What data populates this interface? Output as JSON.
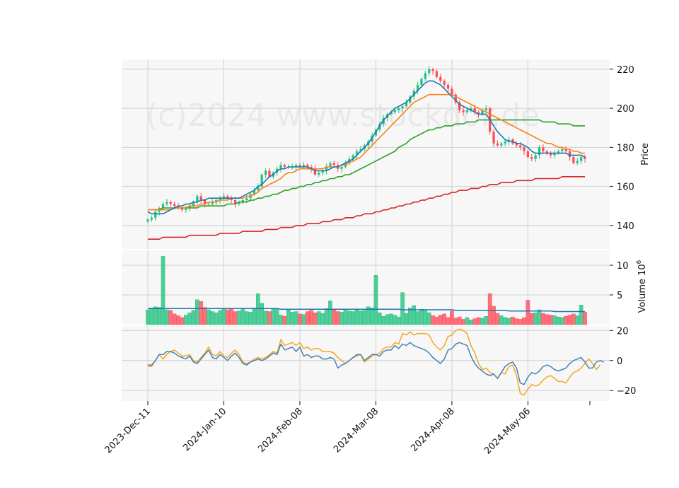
{
  "chart_data": {
    "type": "candlestick",
    "watermark": "(c)2024 www.stockdor.de",
    "x_tick_labels": [
      "2023-Dec-11",
      "2024-Jan-10",
      "2024-Feb-08",
      "2024-Mar-08",
      "2024-Apr-08",
      "2024-May-06"
    ],
    "x_tick_positions": [
      0,
      20,
      40,
      60,
      80,
      100
    ],
    "colors": {
      "up": "#26c281",
      "down": "#ff4d5a",
      "ma_fast": "#1f77b4",
      "ma_mid": "#ff7f0e",
      "ma_slow": "#2ca02c",
      "ma_long": "#d62728",
      "osc_a": "#f5a623",
      "osc_b": "#4682b4",
      "panel_bg": "#f7f7f7",
      "grid": "#d0d0d0"
    },
    "price_panel": {
      "ylabel": "Price",
      "ylim": [
        128,
        225
      ],
      "yticks": [
        140,
        160,
        180,
        200,
        220
      ],
      "close": [
        143,
        144,
        147,
        149,
        151,
        152,
        151,
        150,
        149,
        148,
        149,
        150,
        152,
        155,
        153,
        151,
        151,
        152,
        153,
        154,
        155,
        154,
        153,
        151,
        152,
        153,
        154,
        156,
        158,
        160,
        166,
        168,
        165,
        167,
        169,
        171,
        170,
        170,
        170,
        171,
        170,
        171,
        170,
        169,
        166,
        167,
        168,
        170,
        172,
        171,
        169,
        170,
        172,
        174,
        176,
        178,
        179,
        181,
        183,
        186,
        189,
        192,
        195,
        197,
        198,
        199,
        200,
        201,
        203,
        206,
        209,
        212,
        215,
        218,
        220,
        219,
        216,
        214,
        212,
        210,
        207,
        203,
        199,
        198,
        199,
        200,
        198,
        197,
        199,
        200,
        188,
        182,
        181,
        182,
        183,
        184,
        182,
        181,
        180,
        178,
        175,
        174,
        176,
        180,
        178,
        177,
        176,
        177,
        178,
        179,
        178,
        175,
        172,
        173,
        175,
        174
      ],
      "ma_fast": [
        147,
        146,
        146,
        146,
        146,
        147,
        148,
        149,
        150,
        150,
        151,
        151,
        152,
        152,
        153,
        153,
        154,
        154,
        154,
        154,
        154,
        154,
        154,
        154,
        154,
        155,
        156,
        157,
        158,
        160,
        161,
        163,
        165,
        166,
        168,
        169,
        169,
        170,
        170,
        170,
        170,
        170,
        170,
        169,
        168,
        168,
        168,
        168,
        169,
        170,
        170,
        171,
        172,
        173,
        174,
        176,
        178,
        180,
        182,
        185,
        188,
        191,
        194,
        196,
        198,
        200,
        201,
        202,
        203,
        205,
        207,
        209,
        211,
        213,
        214,
        214,
        213,
        212,
        210,
        208,
        206,
        204,
        202,
        201,
        200,
        199,
        198,
        197,
        197,
        197,
        194,
        191,
        188,
        186,
        184,
        183,
        183,
        182,
        182,
        181,
        180,
        178,
        177,
        177,
        177,
        177,
        177,
        177,
        177,
        177,
        177,
        176,
        176,
        176,
        176,
        175
      ],
      "ma_mid": [
        148,
        148,
        148,
        148,
        148,
        148,
        148,
        149,
        149,
        149,
        149,
        150,
        150,
        150,
        151,
        151,
        152,
        152,
        152,
        153,
        153,
        153,
        154,
        154,
        154,
        154,
        155,
        155,
        156,
        157,
        159,
        160,
        161,
        162,
        163,
        164,
        166,
        167,
        167,
        168,
        169,
        169,
        169,
        169,
        169,
        169,
        169,
        170,
        170,
        170,
        170,
        171,
        171,
        172,
        173,
        174,
        175,
        177,
        179,
        181,
        183,
        185,
        187,
        189,
        191,
        193,
        195,
        197,
        199,
        201,
        203,
        204,
        205,
        206,
        207,
        207,
        207,
        207,
        207,
        207,
        207,
        206,
        205,
        204,
        203,
        202,
        201,
        200,
        199,
        198,
        197,
        196,
        195,
        194,
        193,
        192,
        191,
        190,
        189,
        188,
        187,
        186,
        185,
        184,
        183,
        182,
        182,
        181,
        180,
        180,
        179,
        179,
        178,
        178,
        177,
        177
      ],
      "ma_slow": [
        148,
        148,
        148,
        148,
        149,
        149,
        149,
        149,
        149,
        149,
        149,
        149,
        149,
        149,
        150,
        150,
        150,
        150,
        150,
        150,
        150,
        151,
        151,
        151,
        152,
        152,
        152,
        153,
        153,
        154,
        154,
        155,
        155,
        156,
        156,
        157,
        158,
        158,
        159,
        159,
        160,
        160,
        161,
        161,
        162,
        162,
        163,
        163,
        164,
        164,
        165,
        165,
        166,
        166,
        167,
        168,
        169,
        170,
        171,
        172,
        173,
        174,
        175,
        176,
        177,
        178,
        180,
        181,
        182,
        184,
        185,
        186,
        187,
        188,
        189,
        189,
        190,
        190,
        191,
        191,
        191,
        192,
        192,
        192,
        193,
        193,
        193,
        194,
        194,
        194,
        194,
        194,
        194,
        194,
        194,
        194,
        194,
        194,
        194,
        194,
        194,
        194,
        194,
        194,
        193,
        193,
        193,
        193,
        192,
        192,
        192,
        192,
        191,
        191,
        191,
        191
      ],
      "ma_long": [
        133,
        133,
        133,
        133,
        134,
        134,
        134,
        134,
        134,
        134,
        134,
        135,
        135,
        135,
        135,
        135,
        135,
        135,
        135,
        136,
        136,
        136,
        136,
        136,
        136,
        137,
        137,
        137,
        137,
        137,
        137,
        138,
        138,
        138,
        138,
        139,
        139,
        139,
        139,
        140,
        140,
        140,
        141,
        141,
        141,
        141,
        142,
        142,
        142,
        143,
        143,
        143,
        144,
        144,
        144,
        145,
        145,
        146,
        146,
        146,
        147,
        147,
        148,
        148,
        149,
        149,
        150,
        150,
        151,
        151,
        152,
        152,
        153,
        153,
        154,
        154,
        155,
        155,
        156,
        156,
        157,
        157,
        158,
        158,
        158,
        159,
        159,
        159,
        160,
        160,
        161,
        161,
        161,
        162,
        162,
        162,
        162,
        163,
        163,
        163,
        163,
        163,
        164,
        164,
        164,
        164,
        164,
        164,
        164,
        165,
        165,
        165,
        165,
        165,
        165,
        165
      ]
    },
    "volume_panel": {
      "ylabel": "Volume  10",
      "ylabel_exponent": "6",
      "ylim": [
        0,
        12.5
      ],
      "yticks": [
        5,
        10
      ],
      "values": [
        2.5,
        2.8,
        3.0,
        2.9,
        11.5,
        2.5,
        2.4,
        1.8,
        1.5,
        1.2,
        1.6,
        2.0,
        2.4,
        4.2,
        3.9,
        2.9,
        2.5,
        2.2,
        2.0,
        2.4,
        2.7,
        2.5,
        2.6,
        2.2,
        2.3,
        2.7,
        2.2,
        2.1,
        2.8,
        5.2,
        3.6,
        2.3,
        2.2,
        2.6,
        2.7,
        1.6,
        1.4,
        2.5,
        2.1,
        2.2,
        1.8,
        1.7,
        2.2,
        2.4,
        2.0,
        2.2,
        1.9,
        2.7,
        4.0,
        2.5,
        2.2,
        2.1,
        2.6,
        2.3,
        2.2,
        2.5,
        2.3,
        2.4,
        3.0,
        2.8,
        8.3,
        2.0,
        1.4,
        1.7,
        1.8,
        1.6,
        1.3,
        5.4,
        1.9,
        2.8,
        3.2,
        2.2,
        2.6,
        2.5,
        2.0,
        1.5,
        1.3,
        1.6,
        1.8,
        1.2,
        2.3,
        1.1,
        1.3,
        0.9,
        1.2,
        0.8,
        1.0,
        1.2,
        1.1,
        1.4,
        5.2,
        3.1,
        1.9,
        1.5,
        1.2,
        1.1,
        1.3,
        1.0,
        0.9,
        1.2,
        4.1,
        1.9,
        2.0,
        2.5,
        1.9,
        1.7,
        1.6,
        1.5,
        1.3,
        1.2,
        1.4,
        1.6,
        1.8,
        1.5,
        3.3,
        2.1
      ],
      "avg": [
        2.7,
        2.7,
        2.7,
        2.7,
        2.7,
        2.7,
        2.7,
        2.7,
        2.7,
        2.7,
        2.7,
        2.7,
        2.7,
        2.7,
        2.7,
        2.7,
        2.7,
        2.7,
        2.7,
        2.7,
        2.7,
        2.7,
        2.7,
        2.7,
        2.7,
        2.7,
        2.7,
        2.7,
        2.7,
        2.7,
        2.7,
        2.7,
        2.7,
        2.7,
        2.7,
        2.6,
        2.6,
        2.6,
        2.6,
        2.6,
        2.6,
        2.6,
        2.6,
        2.6,
        2.6,
        2.6,
        2.6,
        2.6,
        2.6,
        2.6,
        2.6,
        2.6,
        2.6,
        2.6,
        2.6,
        2.6,
        2.6,
        2.6,
        2.6,
        2.6,
        2.6,
        2.6,
        2.6,
        2.6,
        2.6,
        2.6,
        2.6,
        2.5,
        2.5,
        2.5,
        2.5,
        2.5,
        2.5,
        2.5,
        2.5,
        2.5,
        2.5,
        2.5,
        2.5,
        2.5,
        2.5,
        2.4,
        2.4,
        2.4,
        2.4,
        2.4,
        2.4,
        2.4,
        2.4,
        2.4,
        2.4,
        2.4,
        2.4,
        2.4,
        2.4,
        2.3,
        2.3,
        2.3,
        2.3,
        2.3,
        2.3,
        2.3,
        2.3,
        2.3,
        2.3,
        2.3,
        2.3,
        2.2,
        2.2,
        2.2,
        2.2,
        2.2,
        2.2,
        2.2,
        2.2,
        2.2
      ]
    },
    "oscillator_panel": {
      "ylim": [
        -27,
        23
      ],
      "yticks": [
        -20,
        0,
        20
      ],
      "series_a": [
        -4,
        -4,
        0,
        4,
        1,
        4,
        6,
        7,
        5,
        3,
        3,
        4,
        0,
        -1,
        2,
        5,
        9,
        4,
        3,
        6,
        3,
        2,
        5,
        7,
        4,
        -1,
        -2,
        -1,
        1,
        2,
        1,
        2,
        4,
        6,
        5,
        14,
        10,
        11,
        12,
        10,
        12,
        8,
        9,
        7,
        8,
        8,
        6,
        6,
        6,
        5,
        2,
        0,
        -2,
        0,
        2,
        3,
        4,
        -1,
        1,
        3,
        4,
        5,
        8,
        9,
        9,
        12,
        11,
        18,
        17,
        19,
        17,
        18,
        18,
        18,
        17,
        12,
        9,
        7,
        10,
        16,
        17,
        20,
        21,
        20,
        18,
        10,
        5,
        -2,
        -6,
        -5,
        -8,
        -9,
        -12,
        -8,
        -9,
        -4,
        -3,
        -10,
        -22,
        -23,
        -19,
        -16,
        -17,
        -16,
        -13,
        -11,
        -10,
        -12,
        -14,
        -14,
        -15,
        -11,
        -8,
        -7,
        -5,
        -2,
        1,
        -2,
        -6,
        -3
      ],
      "series_b": [
        -3,
        -3,
        0,
        4,
        4,
        6,
        6,
        5,
        3,
        2,
        1,
        3,
        -1,
        -2,
        1,
        4,
        7,
        2,
        1,
        4,
        2,
        0,
        3,
        5,
        2,
        -2,
        -3,
        -1,
        0,
        1,
        0,
        1,
        3,
        5,
        4,
        11,
        7,
        8,
        9,
        6,
        9,
        3,
        4,
        2,
        3,
        3,
        1,
        1,
        2,
        1,
        -5,
        -3,
        -2,
        0,
        2,
        4,
        4,
        0,
        2,
        4,
        4,
        3,
        6,
        7,
        7,
        10,
        8,
        11,
        10,
        12,
        10,
        9,
        8,
        7,
        5,
        2,
        0,
        -2,
        1,
        7,
        8,
        11,
        12,
        11,
        10,
        3,
        -2,
        -5,
        -7,
        -9,
        -10,
        -9,
        -12,
        -8,
        -4,
        -2,
        -1,
        -5,
        -15,
        -16,
        -11,
        -8,
        -9,
        -7,
        -4,
        -3,
        -4,
        -6,
        -7,
        -6,
        -5,
        -2,
        0,
        1,
        2,
        -1,
        -5,
        -5,
        -1,
        0,
        -1
      ]
    }
  }
}
